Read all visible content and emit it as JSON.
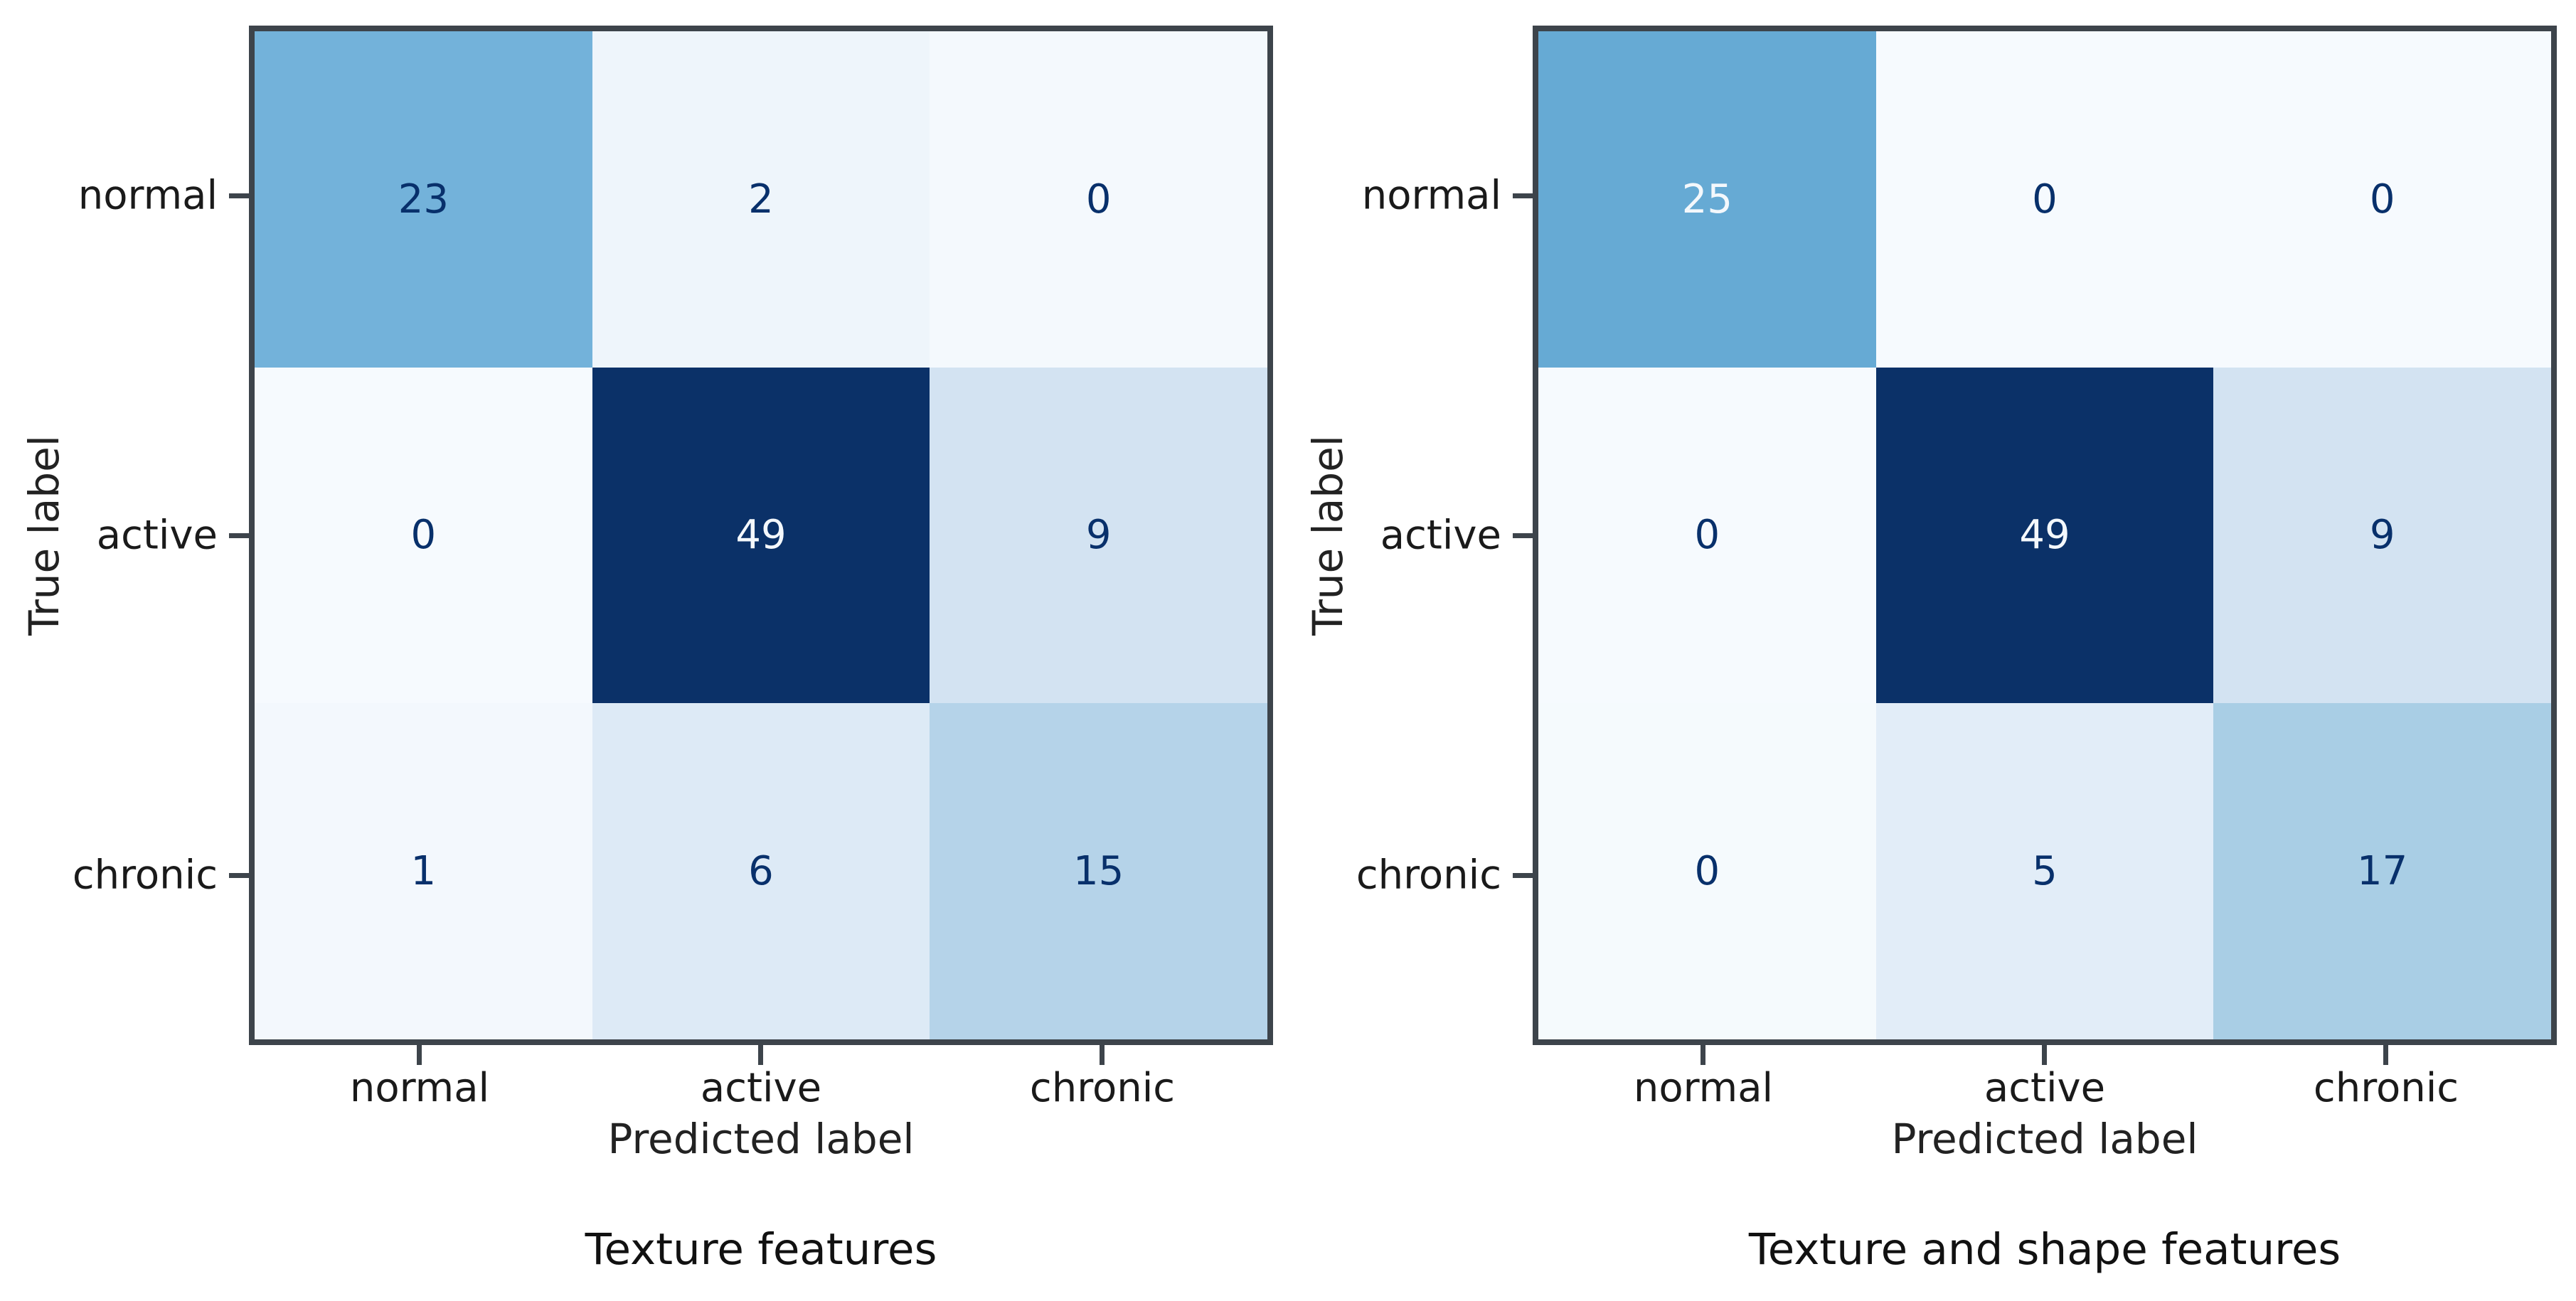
{
  "figure": {
    "background": "#ffffff",
    "axis_color": "#3d444b",
    "label_color": "#1a1a1a",
    "value_text_dark": "#08306b",
    "value_text_light": "#f4f8fc",
    "colormap_min_color": "#f7fbff",
    "colormap_max_color": "#08306b"
  },
  "chart_data": [
    {
      "type": "heatmap",
      "title": "Texture features",
      "xlabel": "Predicted label",
      "ylabel": "True label",
      "x_categories": [
        "normal",
        "active",
        "chronic"
      ],
      "y_categories": [
        "normal",
        "active",
        "chronic"
      ],
      "colormap": "Blues",
      "vmin": 0,
      "vmax": 49,
      "grid": false,
      "matrix": [
        [
          23,
          2,
          0
        ],
        [
          0,
          49,
          9
        ],
        [
          1,
          6,
          15
        ]
      ],
      "cell_colors": [
        [
          "#73b2da",
          "#eef5fb",
          "#f4f9fd"
        ],
        [
          "#f6fafe",
          "#0b3168",
          "#d3e3f2"
        ],
        [
          "#f3f8fd",
          "#ddeaf6",
          "#b5d3e9"
        ]
      ],
      "text_tones": [
        [
          "dark",
          "dark",
          "dark"
        ],
        [
          "dark",
          "light",
          "dark"
        ],
        [
          "dark",
          "dark",
          "dark"
        ]
      ]
    },
    {
      "type": "heatmap",
      "title": "Texture and shape features",
      "xlabel": "Predicted label",
      "ylabel": "True label",
      "x_categories": [
        "normal",
        "active",
        "chronic"
      ],
      "y_categories": [
        "normal",
        "active",
        "chronic"
      ],
      "colormap": "Blues",
      "vmin": 0,
      "vmax": 49,
      "grid": false,
      "matrix": [
        [
          25,
          0,
          0
        ],
        [
          0,
          49,
          9
        ],
        [
          0,
          5,
          17
        ]
      ],
      "cell_colors": [
        [
          "#66aad4",
          "#f6fafe",
          "#f6fafe"
        ],
        [
          "#f6fafe",
          "#0b3168",
          "#d3e3f2"
        ],
        [
          "#f5fafd",
          "#e2edf8",
          "#a9cee5"
        ]
      ],
      "text_tones": [
        [
          "light",
          "dark",
          "dark"
        ],
        [
          "dark",
          "light",
          "dark"
        ],
        [
          "dark",
          "dark",
          "dark"
        ]
      ]
    }
  ]
}
